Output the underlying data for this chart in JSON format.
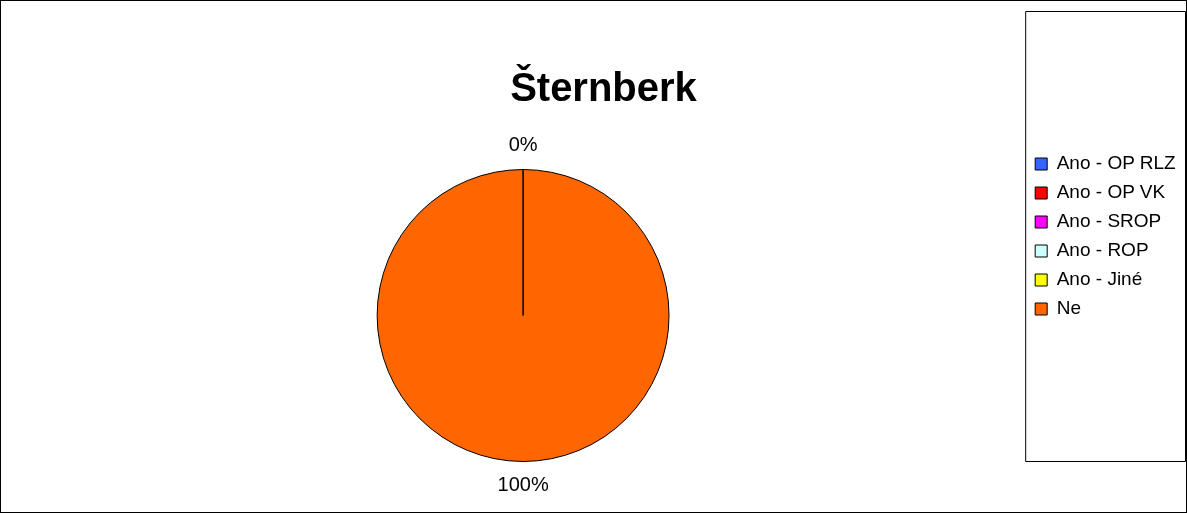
{
  "chart_data": {
    "type": "pie",
    "title": "Šternberk",
    "categories": [
      "Ano - OP RLZ",
      "Ano - OP VK",
      "Ano - SROP",
      "Ano - ROP",
      "Ano - Jiné",
      "Ne"
    ],
    "values": [
      0,
      0,
      0,
      0,
      0,
      100
    ],
    "colors": [
      "#3366ff",
      "#ff0000",
      "#ff00ff",
      "#ccffff",
      "#ffff00",
      "#ff6600"
    ],
    "value_labels": [
      "0%",
      null,
      null,
      null,
      null,
      "100%"
    ],
    "legend": "right"
  }
}
